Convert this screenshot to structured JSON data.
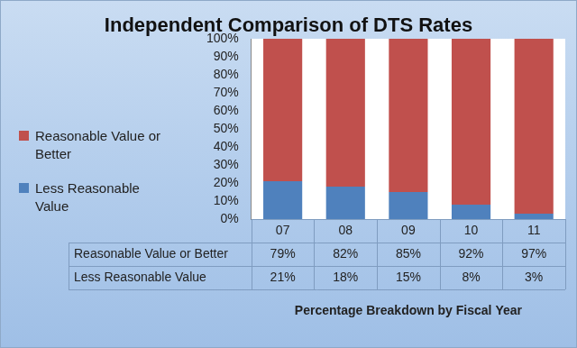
{
  "chart_data": {
    "type": "bar",
    "title": "Independent Comparison of DTS Rates",
    "x_label": "Percentage Breakdown by Fiscal Year",
    "categories": [
      "07",
      "08",
      "09",
      "10",
      "11"
    ],
    "series": [
      {
        "name": "Reasonable Value or Better",
        "color": "#c0504d",
        "values": [
          79,
          82,
          85,
          92,
          97
        ],
        "value_labels": [
          "79%",
          "82%",
          "85%",
          "92%",
          "97%"
        ]
      },
      {
        "name": "Less Reasonable Value",
        "color": "#4f81bd",
        "values": [
          21,
          18,
          15,
          8,
          3
        ],
        "value_labels": [
          "21%",
          "18%",
          "15%",
          "8%",
          "3%"
        ]
      }
    ],
    "ylim": [
      0,
      100
    ],
    "yticks": [
      {
        "value": 0,
        "label": "0%"
      },
      {
        "value": 10,
        "label": "10%"
      },
      {
        "value": 20,
        "label": "20%"
      },
      {
        "value": 30,
        "label": "30%"
      },
      {
        "value": 40,
        "label": "40%"
      },
      {
        "value": 50,
        "label": "50%"
      },
      {
        "value": 60,
        "label": "60%"
      },
      {
        "value": 70,
        "label": "70%"
      },
      {
        "value": 80,
        "label": "80%"
      },
      {
        "value": 90,
        "label": "90%"
      },
      {
        "value": 100,
        "label": "100%"
      }
    ],
    "stacked": true,
    "grid": false,
    "legend": "left"
  }
}
